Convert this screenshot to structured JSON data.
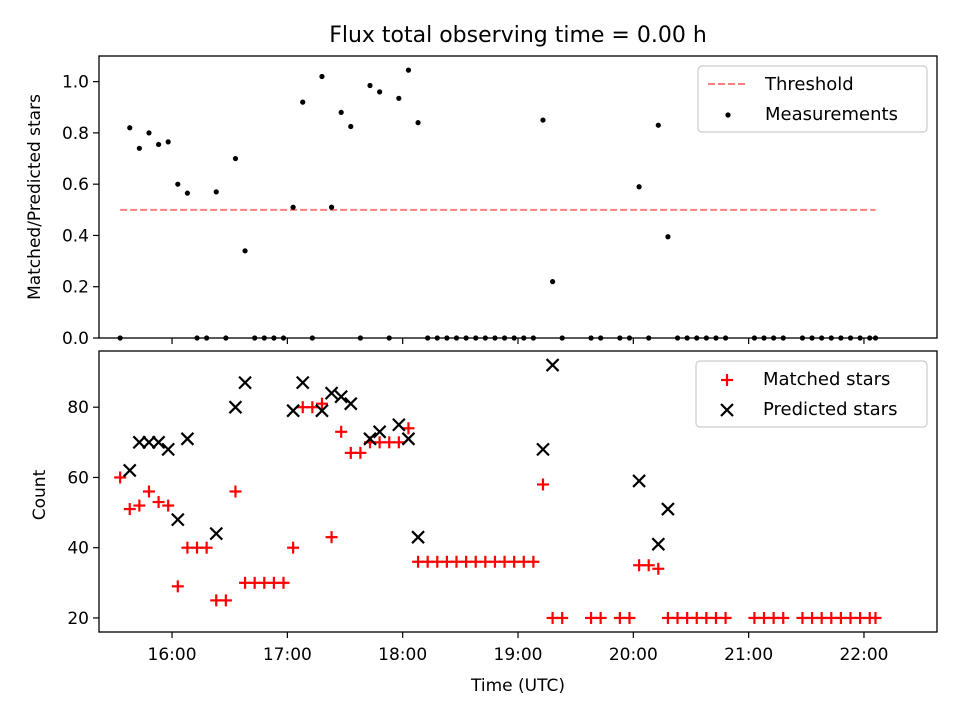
{
  "figure": {
    "title": "Flux total observing time = 0.00 h",
    "xlabel": "Time (UTC)",
    "x_tick_labels": [
      "16:00",
      "17:00",
      "18:00",
      "19:00",
      "20:00",
      "21:00",
      "22:00"
    ]
  },
  "chart_data": [
    {
      "type": "scatter",
      "ylabel": "Matched/Predicted stars",
      "xlim": [
        "15:22",
        "22:38"
      ],
      "ylim": [
        0,
        1.1
      ],
      "y_ticks": [
        "0.0",
        "0.2",
        "0.4",
        "0.6",
        "0.8",
        "1.0"
      ],
      "legend_position": "top-right",
      "legend": [
        "Threshold",
        "Measurements"
      ],
      "colors": {
        "threshold": "#ff7f7f",
        "measurements": "#000000"
      },
      "threshold": {
        "name": "Threshold",
        "y": 0.5,
        "x_start": "15:33",
        "x_end": "22:06"
      },
      "series": [
        {
          "name": "Measurements",
          "points": [
            [
              "15:33",
              0.0
            ],
            [
              "15:38",
              0.82
            ],
            [
              "15:43",
              0.74
            ],
            [
              "15:48",
              0.8
            ],
            [
              "15:53",
              0.755
            ],
            [
              "15:58",
              0.765
            ],
            [
              "16:03",
              0.6
            ],
            [
              "16:08",
              0.565
            ],
            [
              "16:13",
              0.0
            ],
            [
              "16:18",
              0.0
            ],
            [
              "16:23",
              0.57
            ],
            [
              "16:28",
              0.0
            ],
            [
              "16:33",
              0.7
            ],
            [
              "16:38",
              0.34
            ],
            [
              "16:43",
              0.0
            ],
            [
              "16:48",
              0.0
            ],
            [
              "16:53",
              0.0
            ],
            [
              "16:58",
              0.0
            ],
            [
              "17:03",
              0.51
            ],
            [
              "17:08",
              0.92
            ],
            [
              "17:13",
              0.0
            ],
            [
              "17:18",
              1.02
            ],
            [
              "17:23",
              0.51
            ],
            [
              "17:28",
              0.88
            ],
            [
              "17:33",
              0.825
            ],
            [
              "17:38",
              0.0
            ],
            [
              "17:43",
              0.985
            ],
            [
              "17:48",
              0.96
            ],
            [
              "17:53",
              0.0
            ],
            [
              "17:58",
              0.935
            ],
            [
              "18:03",
              1.045
            ],
            [
              "18:08",
              0.84
            ],
            [
              "18:13",
              0.0
            ],
            [
              "18:18",
              0.0
            ],
            [
              "18:23",
              0.0
            ],
            [
              "18:28",
              0.0
            ],
            [
              "18:33",
              0.0
            ],
            [
              "18:38",
              0.0
            ],
            [
              "18:43",
              0.0
            ],
            [
              "18:48",
              0.0
            ],
            [
              "18:53",
              0.0
            ],
            [
              "18:58",
              0.0
            ],
            [
              "19:03",
              0.0
            ],
            [
              "19:08",
              0.0
            ],
            [
              "19:13",
              0.85
            ],
            [
              "19:18",
              0.22
            ],
            [
              "19:23",
              0.0
            ],
            [
              "19:38",
              0.0
            ],
            [
              "19:43",
              0.0
            ],
            [
              "19:53",
              0.0
            ],
            [
              "19:58",
              0.0
            ],
            [
              "20:03",
              0.59
            ],
            [
              "20:08",
              0.0
            ],
            [
              "20:13",
              0.83
            ],
            [
              "20:18",
              0.395
            ],
            [
              "20:23",
              0.0
            ],
            [
              "20:28",
              0.0
            ],
            [
              "20:33",
              0.0
            ],
            [
              "20:38",
              0.0
            ],
            [
              "20:43",
              0.0
            ],
            [
              "20:48",
              0.0
            ],
            [
              "21:03",
              0.0
            ],
            [
              "21:08",
              0.0
            ],
            [
              "21:13",
              0.0
            ],
            [
              "21:18",
              0.0
            ],
            [
              "21:28",
              0.0
            ],
            [
              "21:33",
              0.0
            ],
            [
              "21:38",
              0.0
            ],
            [
              "21:43",
              0.0
            ],
            [
              "21:48",
              0.0
            ],
            [
              "21:53",
              0.0
            ],
            [
              "21:58",
              0.0
            ],
            [
              "22:03",
              0.0
            ],
            [
              "22:06",
              0.0
            ]
          ]
        }
      ]
    },
    {
      "type": "scatter",
      "ylabel": "Count",
      "xlim": [
        "15:22",
        "22:38"
      ],
      "ylim": [
        16,
        96
      ],
      "y_ticks": [
        "20",
        "40",
        "60",
        "80"
      ],
      "legend_position": "top-right",
      "legend": [
        "Matched stars",
        "Predicted stars"
      ],
      "colors": {
        "matched": "#ff0000",
        "predicted": "#000000"
      },
      "series": [
        {
          "name": "Matched stars",
          "marker": "plus",
          "points": [
            [
              "15:33",
              60
            ],
            [
              "15:38",
              51
            ],
            [
              "15:43",
              52
            ],
            [
              "15:48",
              56
            ],
            [
              "15:53",
              53
            ],
            [
              "15:58",
              52
            ],
            [
              "16:03",
              29
            ],
            [
              "16:08",
              40
            ],
            [
              "16:13",
              40
            ],
            [
              "16:18",
              40
            ],
            [
              "16:23",
              25
            ],
            [
              "16:28",
              25
            ],
            [
              "16:33",
              56
            ],
            [
              "16:38",
              30
            ],
            [
              "16:43",
              30
            ],
            [
              "16:48",
              30
            ],
            [
              "16:53",
              30
            ],
            [
              "16:58",
              30
            ],
            [
              "17:03",
              40
            ],
            [
              "17:08",
              80
            ],
            [
              "17:13",
              80
            ],
            [
              "17:18",
              81
            ],
            [
              "17:23",
              43
            ],
            [
              "17:28",
              73
            ],
            [
              "17:33",
              67
            ],
            [
              "17:38",
              67
            ],
            [
              "17:43",
              70
            ],
            [
              "17:48",
              70
            ],
            [
              "17:53",
              70
            ],
            [
              "17:58",
              70
            ],
            [
              "18:03",
              74
            ],
            [
              "18:08",
              36
            ],
            [
              "18:13",
              36
            ],
            [
              "18:18",
              36
            ],
            [
              "18:23",
              36
            ],
            [
              "18:28",
              36
            ],
            [
              "18:33",
              36
            ],
            [
              "18:38",
              36
            ],
            [
              "18:43",
              36
            ],
            [
              "18:48",
              36
            ],
            [
              "18:53",
              36
            ],
            [
              "18:58",
              36
            ],
            [
              "19:03",
              36
            ],
            [
              "19:08",
              36
            ],
            [
              "19:13",
              58
            ],
            [
              "19:18",
              20
            ],
            [
              "19:23",
              20
            ],
            [
              "19:38",
              20
            ],
            [
              "19:43",
              20
            ],
            [
              "19:53",
              20
            ],
            [
              "19:58",
              20
            ],
            [
              "20:03",
              35
            ],
            [
              "20:08",
              35
            ],
            [
              "20:13",
              34
            ],
            [
              "20:18",
              20
            ],
            [
              "20:23",
              20
            ],
            [
              "20:28",
              20
            ],
            [
              "20:33",
              20
            ],
            [
              "20:38",
              20
            ],
            [
              "20:43",
              20
            ],
            [
              "20:48",
              20
            ],
            [
              "21:03",
              20
            ],
            [
              "21:08",
              20
            ],
            [
              "21:13",
              20
            ],
            [
              "21:18",
              20
            ],
            [
              "21:28",
              20
            ],
            [
              "21:33",
              20
            ],
            [
              "21:38",
              20
            ],
            [
              "21:43",
              20
            ],
            [
              "21:48",
              20
            ],
            [
              "21:53",
              20
            ],
            [
              "21:58",
              20
            ],
            [
              "22:03",
              20
            ],
            [
              "22:06",
              20
            ]
          ]
        },
        {
          "name": "Predicted stars",
          "marker": "x",
          "points": [
            [
              "15:38",
              62
            ],
            [
              "15:43",
              70
            ],
            [
              "15:48",
              70
            ],
            [
              "15:53",
              70
            ],
            [
              "15:58",
              68
            ],
            [
              "16:03",
              48
            ],
            [
              "16:08",
              71
            ],
            [
              "16:23",
              44
            ],
            [
              "16:33",
              80
            ],
            [
              "16:38",
              87
            ],
            [
              "17:03",
              79
            ],
            [
              "17:08",
              87
            ],
            [
              "17:18",
              79
            ],
            [
              "17:23",
              84
            ],
            [
              "17:28",
              83
            ],
            [
              "17:33",
              81
            ],
            [
              "17:43",
              71
            ],
            [
              "17:48",
              73
            ],
            [
              "17:58",
              75
            ],
            [
              "18:03",
              71
            ],
            [
              "18:08",
              43
            ],
            [
              "19:13",
              68
            ],
            [
              "19:18",
              92
            ],
            [
              "20:03",
              59
            ],
            [
              "20:13",
              41
            ],
            [
              "20:18",
              51
            ]
          ]
        }
      ]
    }
  ]
}
